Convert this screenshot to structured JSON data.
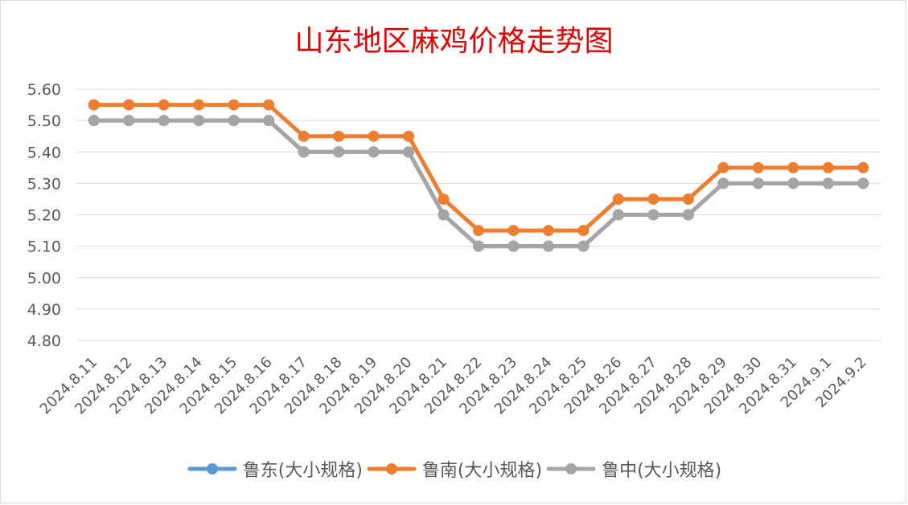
{
  "chart_data": {
    "type": "line",
    "title": "山东地区麻鸡价格走势图",
    "categories": [
      "2024.8.11",
      "2024.8.12",
      "2024.8.13",
      "2024.8.14",
      "2024.8.15",
      "2024.8.16",
      "2024.8.17",
      "2024.8.18",
      "2024.8.19",
      "2024.8.20",
      "2024.8.21",
      "2024.8.22",
      "2024.8.23",
      "2024.8.24",
      "2024.8.25",
      "2024.8.26",
      "2024.8.27",
      "2024.8.28",
      "2024.8.29",
      "2024.8.30",
      "2024.8.31",
      "2024.9.1",
      "2024.9.2"
    ],
    "ylim": [
      4.8,
      5.6
    ],
    "yticks": [
      "5.60",
      "5.50",
      "5.40",
      "5.30",
      "5.20",
      "5.10",
      "5.00",
      "4.90",
      "4.80"
    ],
    "grid": true,
    "legend_position": "bottom",
    "series": [
      {
        "name": "鲁东(大小规格)",
        "color": "#5b9bd5",
        "values": [
          5.5,
          5.5,
          5.5,
          5.5,
          5.5,
          5.5,
          5.4,
          5.4,
          5.4,
          5.4,
          5.2,
          5.1,
          5.1,
          5.1,
          5.1,
          5.2,
          5.2,
          5.2,
          5.3,
          5.3,
          5.3,
          5.3,
          5.3
        ]
      },
      {
        "name": "鲁南(大小规格)",
        "color": "#ed7d31",
        "values": [
          5.55,
          5.55,
          5.55,
          5.55,
          5.55,
          5.55,
          5.45,
          5.45,
          5.45,
          5.45,
          5.25,
          5.15,
          5.15,
          5.15,
          5.15,
          5.25,
          5.25,
          5.25,
          5.35,
          5.35,
          5.35,
          5.35,
          5.35
        ]
      },
      {
        "name": "鲁中(大小规格)",
        "color": "#a5a5a5",
        "values": [
          5.5,
          5.5,
          5.5,
          5.5,
          5.5,
          5.5,
          5.4,
          5.4,
          5.4,
          5.4,
          5.2,
          5.1,
          5.1,
          5.1,
          5.1,
          5.2,
          5.2,
          5.2,
          5.3,
          5.3,
          5.3,
          5.3,
          5.3
        ]
      }
    ]
  }
}
